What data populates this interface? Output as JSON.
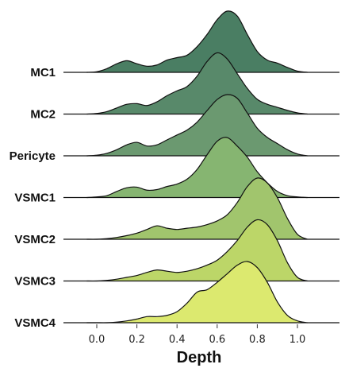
{
  "chart_data": {
    "type": "ridgeline",
    "xlabel": "Depth",
    "ylabel": "",
    "title": "",
    "xlim": [
      -0.17,
      1.2
    ],
    "xticks": [
      0.0,
      0.2,
      0.4,
      0.6,
      0.8,
      1.0
    ],
    "xtick_labels": [
      "0.0",
      "0.2",
      "0.4",
      "0.6",
      "0.8",
      "1.0"
    ],
    "x": [
      -0.05,
      0.0,
      0.05,
      0.1,
      0.15,
      0.2,
      0.25,
      0.3,
      0.35,
      0.4,
      0.45,
      0.5,
      0.55,
      0.6,
      0.65,
      0.7,
      0.75,
      0.8,
      0.85,
      0.9,
      0.95,
      1.0,
      1.05
    ],
    "series": [
      {
        "name": "MC1",
        "color": "#4a7e63",
        "values": [
          0.0,
          0.01,
          0.06,
          0.14,
          0.19,
          0.14,
          0.1,
          0.12,
          0.2,
          0.24,
          0.28,
          0.42,
          0.62,
          0.86,
          1.0,
          0.92,
          0.62,
          0.34,
          0.2,
          0.15,
          0.08,
          0.02,
          0.0
        ]
      },
      {
        "name": "MC2",
        "color": "#58896a",
        "values": [
          0.0,
          0.01,
          0.04,
          0.1,
          0.16,
          0.17,
          0.14,
          0.2,
          0.3,
          0.38,
          0.45,
          0.62,
          0.86,
          1.0,
          0.9,
          0.66,
          0.42,
          0.24,
          0.16,
          0.11,
          0.06,
          0.02,
          0.0
        ]
      },
      {
        "name": "Pericyte",
        "color": "#6b9970",
        "values": [
          0.0,
          0.01,
          0.04,
          0.1,
          0.18,
          0.22,
          0.16,
          0.18,
          0.26,
          0.34,
          0.42,
          0.55,
          0.74,
          0.92,
          1.0,
          0.94,
          0.7,
          0.45,
          0.3,
          0.2,
          0.1,
          0.03,
          0.0
        ]
      },
      {
        "name": "VSMC1",
        "color": "#86b571",
        "values": [
          0.0,
          0.01,
          0.03,
          0.1,
          0.16,
          0.17,
          0.12,
          0.13,
          0.18,
          0.22,
          0.3,
          0.46,
          0.7,
          0.92,
          0.98,
          0.84,
          0.66,
          0.42,
          0.24,
          0.1,
          0.03,
          0.01,
          0.0
        ]
      },
      {
        "name": "VSMC2",
        "color": "#a1c56d",
        "values": [
          0.0,
          0.0,
          0.01,
          0.03,
          0.06,
          0.1,
          0.16,
          0.22,
          0.18,
          0.16,
          0.18,
          0.2,
          0.24,
          0.3,
          0.4,
          0.6,
          0.86,
          1.0,
          0.92,
          0.68,
          0.34,
          0.08,
          0.0
        ]
      },
      {
        "name": "VSMC3",
        "color": "#bcd668",
        "values": [
          0.0,
          0.0,
          0.01,
          0.03,
          0.06,
          0.09,
          0.14,
          0.18,
          0.16,
          0.14,
          0.16,
          0.2,
          0.26,
          0.34,
          0.48,
          0.66,
          0.88,
          1.0,
          0.92,
          0.66,
          0.3,
          0.06,
          0.0
        ]
      },
      {
        "name": "VSMC4",
        "color": "#dce96f",
        "values": [
          0.0,
          0.0,
          0.0,
          0.01,
          0.03,
          0.06,
          0.1,
          0.1,
          0.12,
          0.18,
          0.32,
          0.5,
          0.54,
          0.66,
          0.8,
          0.94,
          1.0,
          0.9,
          0.66,
          0.34,
          0.12,
          0.03,
          0.0
        ]
      }
    ]
  }
}
